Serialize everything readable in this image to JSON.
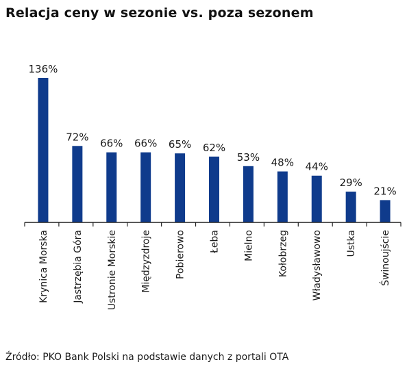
{
  "title": "Relacja ceny w sezonie vs. poza sezonem",
  "source": "Źródło: PKO Bank Polski na podstawie danych z portali OTA",
  "colors": {
    "bar": "#0f3b8c",
    "axis": "#222222"
  },
  "chart_data": {
    "type": "bar",
    "categories": [
      "Krynica Morska",
      "Jastrzębia Góra",
      "Ustronie Morskie",
      "Międzyzdroje",
      "Pobierowo",
      "Łeba",
      "Mielno",
      "Kołobrzeg",
      "Władysławowo",
      "Ustka",
      "Świnoujście"
    ],
    "values": [
      136,
      72,
      66,
      66,
      65,
      62,
      53,
      48,
      44,
      29,
      21
    ],
    "value_labels": [
      "136%",
      "72%",
      "66%",
      "66%",
      "65%",
      "62%",
      "53%",
      "48%",
      "44%",
      "29%",
      "21%"
    ],
    "ylim": [
      0,
      136
    ],
    "grid": false,
    "legend": "none"
  }
}
